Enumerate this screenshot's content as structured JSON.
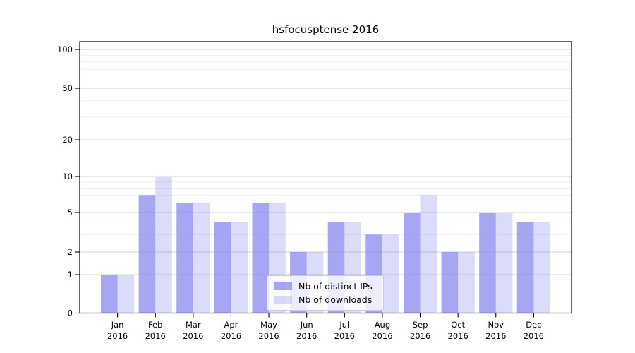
{
  "title": "hsfocusptense 2016",
  "chart_data": {
    "type": "bar",
    "title": "hsfocusptense 2016",
    "categories": [
      "Jan 2016",
      "Feb 2016",
      "Mar 2016",
      "Apr 2016",
      "May 2016",
      "Jun 2016",
      "Jul 2016",
      "Aug 2016",
      "Sep 2016",
      "Oct 2016",
      "Nov 2016",
      "Dec 2016"
    ],
    "series": [
      {
        "name": "Nb of distinct IPs",
        "color": "#8888ee",
        "alpha": 0.75,
        "values": [
          1,
          7,
          6,
          4,
          6,
          2,
          4,
          3,
          5,
          2,
          5,
          4
        ]
      },
      {
        "name": "Nb of downloads",
        "color": "#8888ee",
        "alpha": 0.3,
        "values": [
          1,
          10,
          6,
          4,
          6,
          2,
          4,
          3,
          7,
          2,
          5,
          4
        ]
      }
    ],
    "yscale": "symlog",
    "ylim": [
      0,
      100
    ],
    "yticks": [
      0,
      1,
      2,
      5,
      10,
      20,
      50,
      100
    ],
    "yticks_minor": [
      3,
      4,
      6,
      7,
      8,
      9,
      30,
      40,
      60,
      70,
      80,
      90
    ],
    "grid": "both",
    "grid_major_color": "#d0d0d0",
    "grid_minor_color": "#efefef",
    "legend_position": "lower center"
  }
}
